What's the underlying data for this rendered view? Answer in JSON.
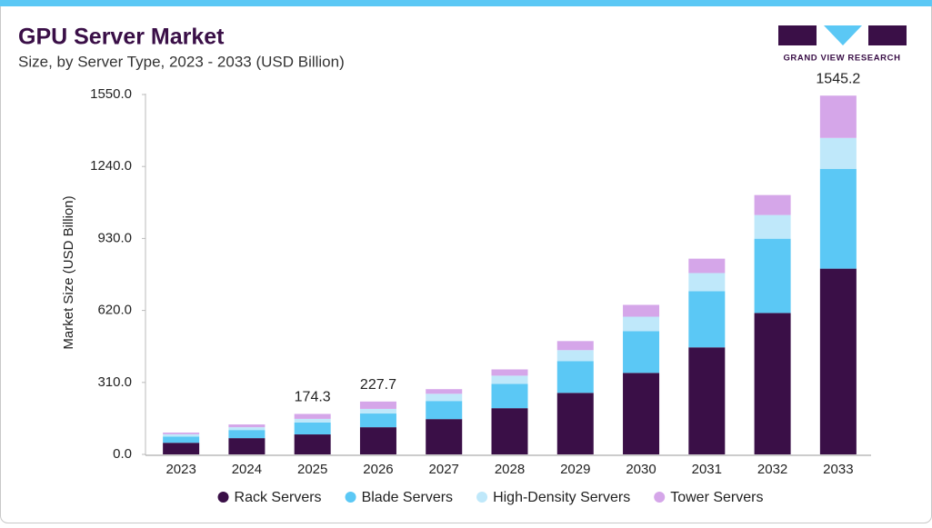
{
  "chart_data": {
    "type": "stacked-bar",
    "title": "GPU Server Market",
    "subtitle": "Size, by Server Type, 2023 - 2033 (USD Billion)",
    "logo_text": "GRAND VIEW RESEARCH",
    "y_label": "Market Size (USD Billion)",
    "categories": [
      "2023",
      "2024",
      "2025",
      "2026",
      "2027",
      "2028",
      "2029",
      "2030",
      "2031",
      "2032",
      "2033"
    ],
    "series": [
      {
        "name": "Rack Servers",
        "color": "#3a0f47",
        "values": [
          50,
          70,
          86,
          117,
          152,
          199,
          265,
          351,
          461,
          609,
          800
        ]
      },
      {
        "name": "Blade Servers",
        "color": "#5bc8f5",
        "values": [
          27,
          35,
          51,
          59,
          78,
          105,
          137,
          180,
          242,
          320,
          430
        ]
      },
      {
        "name": "High-Density Servers",
        "color": "#bfe8fa",
        "values": [
          10,
          12,
          16,
          20,
          31,
          35,
          47,
          62,
          78,
          102,
          133
        ]
      },
      {
        "name": "Tower Servers",
        "color": "#d5a6e9",
        "values": [
          7,
          12,
          21.3,
          31.7,
          20,
          27,
          39,
          51,
          62,
          86,
          182.2
        ]
      }
    ],
    "total_labels": [
      null,
      null,
      174.3,
      227.7,
      null,
      null,
      null,
      null,
      null,
      null,
      1545.2
    ],
    "ylim": [
      0,
      1550
    ],
    "yticks": [
      {
        "value": 0,
        "label": "0.0"
      },
      {
        "value": 310,
        "label": "310.0"
      },
      {
        "value": 620,
        "label": "620.0"
      },
      {
        "value": 930,
        "label": "930.0"
      },
      {
        "value": 1240,
        "label": "1240.0"
      },
      {
        "value": 1550,
        "label": "1550.0"
      }
    ],
    "grid": false
  }
}
